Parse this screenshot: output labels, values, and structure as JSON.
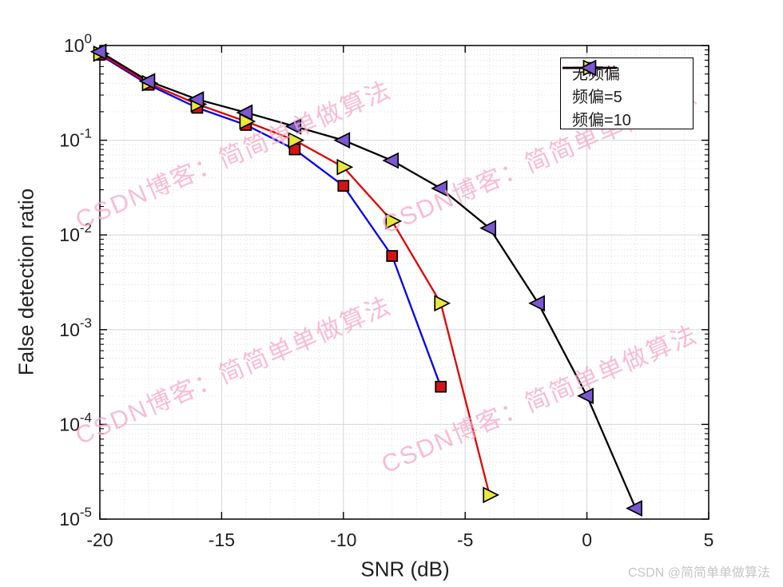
{
  "chart_data": {
    "type": "line",
    "title": "",
    "xlabel": "SNR (dB)",
    "ylabel": "False detection ratio",
    "xlim": [
      -20,
      5
    ],
    "ylim": [
      1e-05,
      1
    ],
    "yscale": "log",
    "x_ticks": [
      -20,
      -15,
      -10,
      -5,
      0,
      5
    ],
    "y_tick_exponents": [
      0,
      -1,
      -2,
      -3,
      -4,
      -5
    ],
    "grid": {
      "major": true,
      "minor": true,
      "major_color": "#d6d6d6",
      "minor_color": "#e3dcdf"
    },
    "legend_position": "top-right",
    "series": [
      {
        "name": "无频偏",
        "line_color": "#0000ee",
        "marker": "square",
        "marker_fill": "#d21414",
        "x": [
          -20,
          -18,
          -16,
          -14,
          -12,
          -10,
          -8,
          -6
        ],
        "y": [
          0.8,
          0.385,
          0.22,
          0.145,
          0.08,
          0.033,
          0.006,
          0.00025
        ]
      },
      {
        "name": "频偏=5",
        "line_color": "#e00000",
        "marker": "triangle-right",
        "marker_fill": "#e9e83c",
        "x": [
          -20,
          -18,
          -16,
          -14,
          -12,
          -10,
          -8,
          -6,
          -4
        ],
        "y": [
          0.82,
          0.4,
          0.24,
          0.158,
          0.1,
          0.052,
          0.014,
          0.0019,
          1.8e-05
        ]
      },
      {
        "name": "频偏=10",
        "line_color": "#000000",
        "marker": "triangle-left",
        "marker_fill": "#7a58d2",
        "x": [
          -20,
          -18,
          -16,
          -14,
          -12,
          -10,
          -8,
          -6,
          -4,
          -2,
          0,
          2
        ],
        "y": [
          0.86,
          0.42,
          0.27,
          0.196,
          0.14,
          0.1,
          0.061,
          0.031,
          0.0118,
          0.0019,
          0.0002,
          1.3e-05
        ]
      }
    ]
  },
  "watermark": {
    "text": "CSDN博客：简简单单做算法",
    "color": "#f5a8c5"
  },
  "caption": {
    "text": "CSDN @简简单单做算法",
    "color": "#c6c6c6"
  },
  "axis": {
    "text_color": "#202020",
    "line_color": "#000000"
  }
}
